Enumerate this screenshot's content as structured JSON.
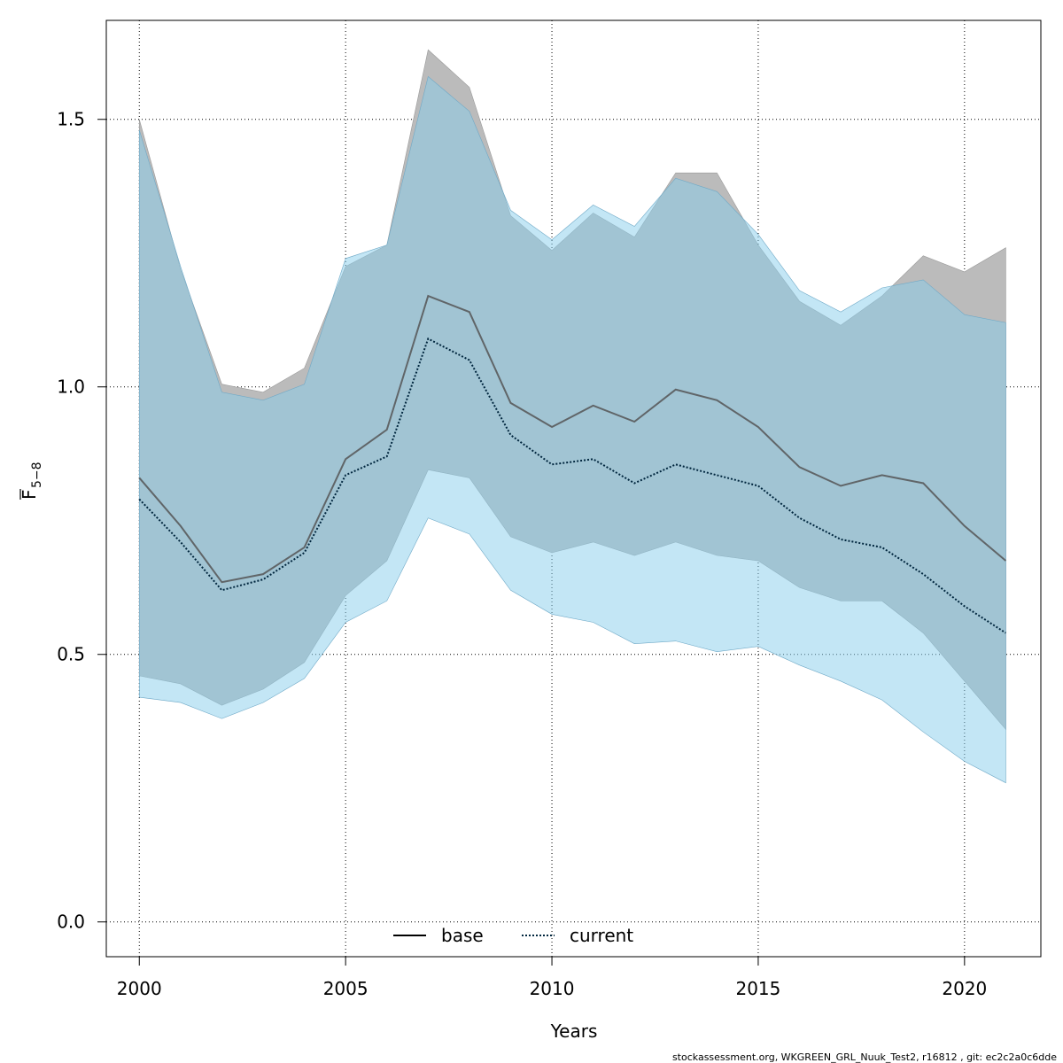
{
  "chart_data": {
    "type": "line",
    "title": "",
    "xlabel": "Years",
    "ylabel_main": "F",
    "ylabel_sub": "5−8",
    "xlim": [
      1999.2,
      2021.85
    ],
    "ylim": [
      -0.065,
      1.685
    ],
    "x_ticks": [
      2000,
      2005,
      2010,
      2015,
      2020
    ],
    "x_tick_labels": [
      "2000",
      "2005",
      "2010",
      "2015",
      "2020"
    ],
    "y_ticks": [
      0,
      0.5,
      1,
      1.5
    ],
    "y_tick_labels": [
      "0.0",
      "0.5",
      "1.0",
      "1.5"
    ],
    "grid": true,
    "legend_position": "bottom-center",
    "x": [
      2000,
      2001,
      2002,
      2003,
      2004,
      2005,
      2006,
      2007,
      2008,
      2009,
      2010,
      2011,
      2012,
      2013,
      2014,
      2015,
      2016,
      2017,
      2018,
      2019,
      2020,
      2021
    ],
    "series": [
      {
        "name": "base",
        "line_style": "solid",
        "color": "#555555",
        "band_color": "#bbbbbb",
        "values": [
          0.83,
          0.74,
          0.635,
          0.65,
          0.7,
          0.865,
          0.92,
          1.17,
          1.14,
          0.97,
          0.925,
          0.965,
          0.935,
          0.995,
          0.975,
          0.925,
          0.85,
          0.815,
          0.835,
          0.82,
          0.74,
          0.675
        ],
        "upper": [
          1.5,
          1.22,
          1.005,
          0.99,
          1.035,
          1.225,
          1.265,
          1.63,
          1.56,
          1.32,
          1.255,
          1.325,
          1.28,
          1.4,
          1.4,
          1.265,
          1.16,
          1.115,
          1.17,
          1.245,
          1.215,
          1.26
        ],
        "lower": [
          0.46,
          0.445,
          0.405,
          0.435,
          0.485,
          0.61,
          0.675,
          0.845,
          0.83,
          0.72,
          0.69,
          0.71,
          0.685,
          0.71,
          0.685,
          0.675,
          0.625,
          0.6,
          0.6,
          0.54,
          0.45,
          0.36
        ]
      },
      {
        "name": "current",
        "line_style": "dotted",
        "color": "#00263e",
        "band_color": "#87ceeb",
        "values": [
          0.79,
          0.71,
          0.62,
          0.64,
          0.69,
          0.835,
          0.87,
          1.09,
          1.05,
          0.91,
          0.855,
          0.865,
          0.82,
          0.855,
          0.835,
          0.815,
          0.755,
          0.715,
          0.7,
          0.65,
          0.59,
          0.54
        ],
        "upper": [
          1.48,
          1.225,
          0.99,
          0.975,
          1.005,
          1.24,
          1.265,
          1.58,
          1.515,
          1.33,
          1.275,
          1.34,
          1.3,
          1.39,
          1.365,
          1.285,
          1.18,
          1.14,
          1.185,
          1.2,
          1.135,
          1.12
        ],
        "lower": [
          0.42,
          0.41,
          0.38,
          0.41,
          0.455,
          0.56,
          0.6,
          0.755,
          0.725,
          0.62,
          0.575,
          0.56,
          0.52,
          0.525,
          0.505,
          0.515,
          0.48,
          0.45,
          0.415,
          0.355,
          0.3,
          0.26
        ]
      }
    ],
    "footer": "stockassessment.org, WKGREEN_GRL_Nuuk_Test2, r16812 , git: ec2c2a0c6dde"
  }
}
